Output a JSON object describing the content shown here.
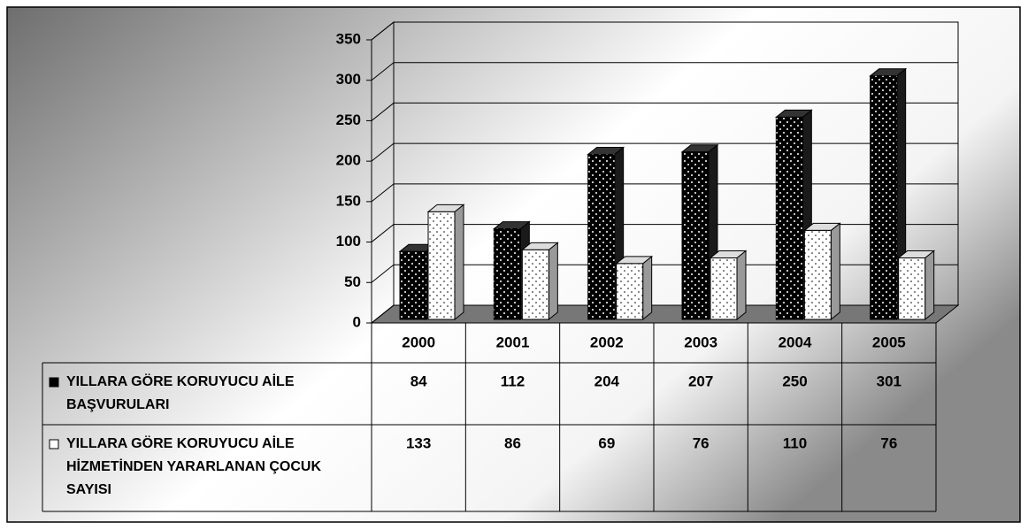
{
  "chart_data": {
    "type": "bar3d",
    "categories": [
      "2000",
      "2001",
      "2002",
      "2003",
      "2004",
      "2005"
    ],
    "series": [
      {
        "name": "YILLARA GÖRE KORUYUCU AİLE BAŞVURULARI",
        "color": "#000000",
        "values": [
          84,
          112,
          204,
          207,
          250,
          301
        ]
      },
      {
        "name": "YILLARA GÖRE KORUYUCU AİLE HİZMETİNDEN YARARLANAN ÇOCUK SAYISI",
        "color": "#ffffff",
        "values": [
          133,
          86,
          69,
          76,
          110,
          76
        ]
      }
    ],
    "ylim": [
      0,
      350
    ],
    "yticks": [
      0,
      50,
      100,
      150,
      200,
      250,
      300,
      350
    ],
    "grid": true
  }
}
